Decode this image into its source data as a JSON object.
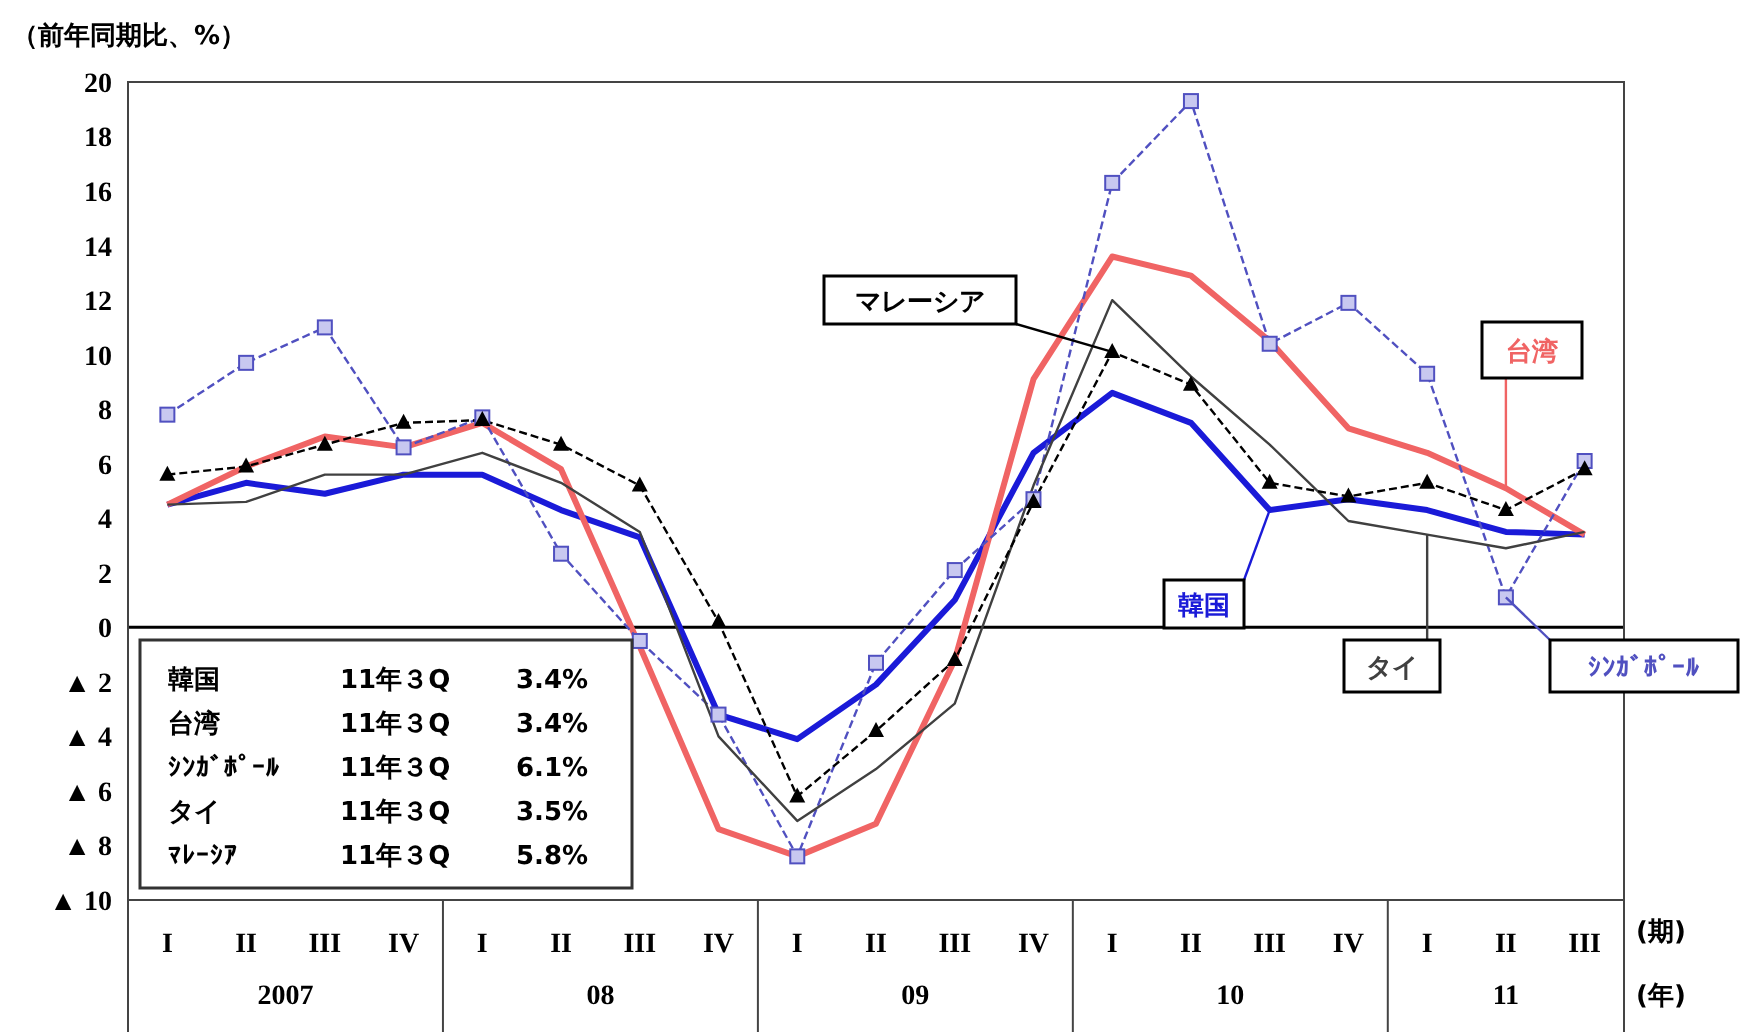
{
  "chart_data": {
    "type": "line",
    "ylabel": "（前年同期比、%）",
    "xlabel": "(期)",
    "categories": [
      "I",
      "II",
      "III",
      "IV",
      "I",
      "II",
      "III",
      "IV",
      "I",
      "II",
      "III",
      "IV",
      "I",
      "II",
      "III",
      "IV",
      "I",
      "II",
      "III"
    ],
    "series": [
      {
        "name": "韓国",
        "color": "#1a1ad8",
        "line_style": "solid",
        "marker": "none",
        "values": [
          4.5,
          5.3,
          4.9,
          5.6,
          5.6,
          4.3,
          3.3,
          -3.2,
          -4.1,
          -2.1,
          1.0,
          6.4,
          8.6,
          7.5,
          4.3,
          4.7,
          4.3,
          3.5,
          3.4
        ]
      },
      {
        "name": "台湾",
        "color": "#f06464",
        "line_style": "solid",
        "marker": "none",
        "values": [
          4.5,
          5.9,
          7.0,
          6.6,
          7.5,
          5.8,
          -0.7,
          -7.4,
          -8.4,
          -7.2,
          -1.2,
          9.1,
          13.6,
          12.9,
          10.5,
          7.3,
          6.4,
          5.1,
          3.4
        ]
      },
      {
        "name": "ｼﾝｶﾞﾎﾟｰﾙ",
        "color": "#5050c0",
        "line_style": "dashed",
        "marker": "square",
        "values": [
          7.8,
          9.7,
          11.0,
          6.6,
          7.7,
          2.7,
          -0.5,
          -3.2,
          -8.4,
          -1.3,
          2.1,
          4.7,
          16.3,
          19.3,
          10.4,
          11.9,
          9.3,
          1.1,
          6.1
        ]
      },
      {
        "name": "タイ",
        "color": "#404040",
        "line_style": "solid",
        "marker": "none",
        "values": [
          4.5,
          4.6,
          5.6,
          5.6,
          6.4,
          5.3,
          3.5,
          -4.0,
          -7.1,
          -5.2,
          -2.8,
          5.2,
          12.0,
          9.2,
          6.7,
          3.9,
          3.4,
          2.9,
          3.5
        ]
      },
      {
        "name": "マレーシア",
        "color": "#000000",
        "line_style": "dashed",
        "marker": "triangle",
        "values": [
          5.6,
          5.9,
          6.7,
          7.5,
          7.6,
          6.7,
          5.2,
          0.2,
          -6.2,
          -3.8,
          -1.2,
          4.6,
          10.1,
          8.9,
          5.3,
          4.8,
          5.3,
          4.3,
          5.8
        ]
      }
    ],
    "ylim": [
      -10,
      20
    ],
    "yticks": [
      {
        "value": -10,
        "label": "▲ 10"
      },
      {
        "value": -8,
        "label": "▲ 8"
      },
      {
        "value": -6,
        "label": "▲ 6"
      },
      {
        "value": -4,
        "label": "▲ 4"
      },
      {
        "value": -2,
        "label": "▲ 2"
      },
      0,
      2,
      4,
      6,
      8,
      10,
      12,
      14,
      16,
      18,
      20
    ],
    "ref_lines": [
      {
        "axis": "y",
        "value": 0,
        "color": "#000000"
      }
    ],
    "grid": false,
    "annotations": [
      "韓国　11年３Q　3.4%",
      "台湾　11年３Q　3.4%",
      "ｼﾝｶﾞﾎﾟｰﾙ　11年３Q　6.1%",
      "タイ　11年３Q　3.5%",
      "ﾏﾚｰｼｱ　11年３Q　5.8%",
      "2007",
      "08",
      "09",
      "10",
      "11",
      "(年)"
    ]
  }
}
